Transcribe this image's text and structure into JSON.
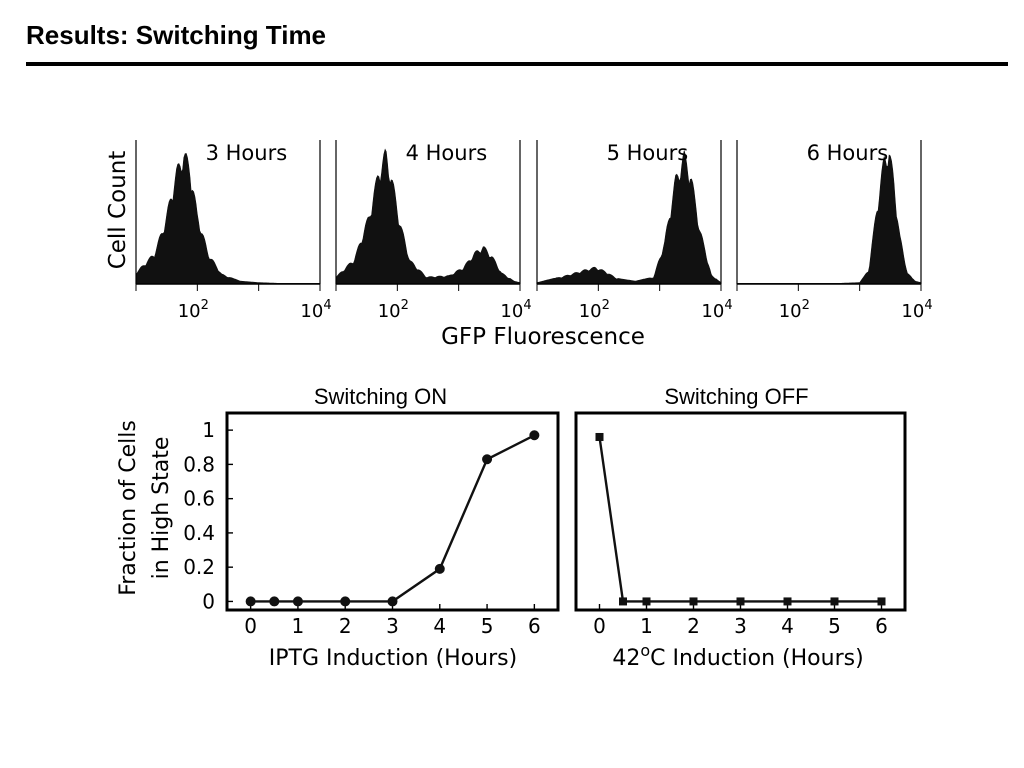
{
  "slide": {
    "title": "Results: Switching Time"
  },
  "histograms": {
    "y_label": "Cell Count",
    "x_label": "GFP Fluorescence",
    "x_ticks": [
      {
        "base": "10",
        "exp": "2",
        "value": 100
      },
      {
        "base": "10",
        "exp": "4",
        "value": 10000
      }
    ]
  },
  "line_plots": {
    "y_label_line1": "Fraction of Cells",
    "y_label_line2": "in High State",
    "y_ticks": [
      "0",
      "0.2",
      "0.4",
      "0.6",
      "0.8",
      "1"
    ],
    "x_ticks": [
      "0",
      "1",
      "2",
      "3",
      "4",
      "5",
      "6"
    ],
    "x_label_on": "IPTG Induction (Hours)",
    "x_label_off_value": "42",
    "x_label_off_superscript": "o",
    "x_label_off_rest": "C Induction (Hours)"
  },
  "chart_data": [
    {
      "type": "area",
      "title": "3 Hours",
      "xscale": "log",
      "xlim": [
        10,
        10000
      ],
      "ylabel": "Cell Count",
      "xlabel": "GFP Fluorescence",
      "series": [
        {
          "x": [
            10,
            20,
            30,
            45,
            60,
            75,
            100,
            150,
            250,
            500,
            1000,
            2000,
            5000,
            10000
          ],
          "values": [
            0.08,
            0.22,
            0.45,
            0.8,
            0.95,
            0.85,
            0.5,
            0.22,
            0.07,
            0.02,
            0.01,
            0.005,
            0.005,
            0.005
          ]
        }
      ]
    },
    {
      "type": "area",
      "title": "4 Hours",
      "xscale": "log",
      "xlim": [
        10,
        10000
      ],
      "ylabel": "Cell Count",
      "xlabel": "GFP Fluorescence",
      "series": [
        {
          "x": [
            10,
            20,
            35,
            50,
            65,
            80,
            110,
            160,
            300,
            700,
            1200,
            1800,
            2500,
            3500,
            5000,
            8000,
            10000
          ],
          "values": [
            0.05,
            0.18,
            0.5,
            0.82,
            0.95,
            0.78,
            0.45,
            0.17,
            0.05,
            0.06,
            0.12,
            0.22,
            0.27,
            0.2,
            0.08,
            0.02,
            0.01
          ]
        }
      ]
    },
    {
      "type": "area",
      "title": "5 Hours",
      "xscale": "log",
      "xlim": [
        10,
        10000
      ],
      "ylabel": "Cell Count",
      "xlabel": "GFP Fluorescence",
      "series": [
        {
          "x": [
            10,
            30,
            60,
            90,
            130,
            200,
            400,
            800,
            1200,
            1800,
            2500,
            3200,
            4500,
            7000,
            10000
          ],
          "values": [
            0.01,
            0.06,
            0.1,
            0.12,
            0.09,
            0.04,
            0.02,
            0.05,
            0.3,
            0.75,
            0.93,
            0.8,
            0.4,
            0.06,
            0.01
          ]
        }
      ]
    },
    {
      "type": "area",
      "title": "6 Hours",
      "xscale": "log",
      "xlim": [
        10,
        10000
      ],
      "ylabel": "Cell Count",
      "xlabel": "GFP Fluorescence",
      "series": [
        {
          "x": [
            10,
            100,
            500,
            1000,
            1400,
            1900,
            2500,
            3000,
            3600,
            4500,
            6000,
            8000,
            10000
          ],
          "values": [
            0.005,
            0.005,
            0.005,
            0.01,
            0.1,
            0.55,
            0.9,
            0.98,
            0.75,
            0.35,
            0.08,
            0.02,
            0.01
          ]
        }
      ]
    },
    {
      "type": "line",
      "title": "Switching ON",
      "xlabel": "IPTG Induction (Hours)",
      "ylabel": "Fraction of Cells in High State",
      "xlim": [
        -0.5,
        6.5
      ],
      "ylim": [
        -0.05,
        1.1
      ],
      "marker": "circle",
      "series": [
        {
          "x": [
            0,
            0.5,
            1,
            2,
            3,
            4,
            5,
            6
          ],
          "values": [
            0,
            0,
            0,
            0,
            0,
            0.19,
            0.83,
            0.97
          ]
        }
      ]
    },
    {
      "type": "line",
      "title": "Switching OFF",
      "xlabel": "42oC Induction (Hours)",
      "ylabel": "Fraction of Cells in High State",
      "xlim": [
        -0.5,
        6.5
      ],
      "ylim": [
        -0.05,
        1.1
      ],
      "marker": "square",
      "series": [
        {
          "x": [
            0,
            0.5,
            1,
            2,
            3,
            4,
            5,
            6
          ],
          "values": [
            0.96,
            0,
            0,
            0,
            0,
            0,
            0,
            0
          ]
        }
      ]
    }
  ]
}
